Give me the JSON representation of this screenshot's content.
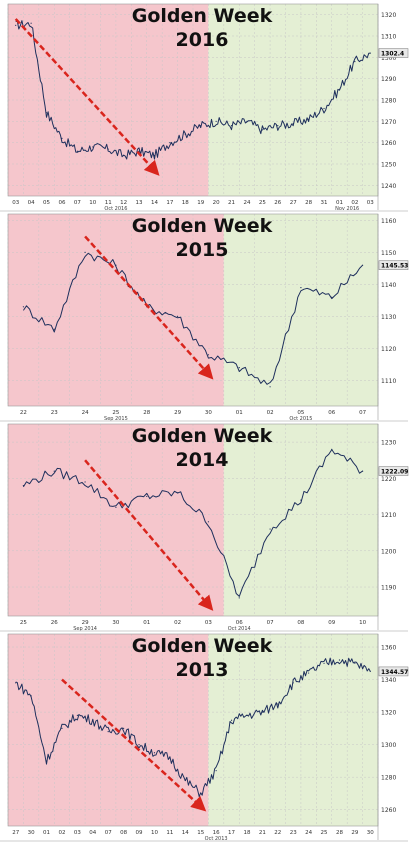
{
  "colors": {
    "pre_holiday_bg": "#f5c6cc",
    "post_holiday_bg": "#e4efd4",
    "price_line": "#1e2f5c",
    "trend_arrow": "#d9251d",
    "grid": "#c7c7c7",
    "last_price_label_bg": "#e8e8e8"
  },
  "chart_data": [
    {
      "type": "line",
      "title_line1": "Golden Week",
      "title_line2": "2016",
      "last_price_label": "1302.4",
      "ylim": [
        1235,
        1325
      ],
      "yticks": [
        1240,
        1250,
        1260,
        1270,
        1280,
        1290,
        1300,
        1310,
        1320
      ],
      "xticks": [
        "03",
        "04",
        "05",
        "06",
        "07",
        "10",
        "11",
        "12",
        "13",
        "14",
        "17",
        "18",
        "19",
        "20",
        "21",
        "24",
        "25",
        "26",
        "27",
        "28",
        "31",
        "01",
        "02",
        "03"
      ],
      "xlabel_groups": [
        {
          "label": "Oct 2016",
          "at": "10-13"
        },
        {
          "label": "Nov 2016",
          "at": "01-02"
        }
      ],
      "holiday_split_after": "19",
      "trend_arrow": {
        "from": [
          "03",
          1318
        ],
        "to": [
          "14",
          1247
        ]
      },
      "x": [
        "03",
        "04",
        "05",
        "06",
        "07",
        "10",
        "11",
        "12",
        "13",
        "14",
        "17",
        "18",
        "19",
        "20",
        "21",
        "24",
        "25",
        "26",
        "27",
        "28",
        "31",
        "01",
        "02",
        "03"
      ],
      "values": [
        1315,
        1316,
        1274,
        1262,
        1256,
        1258,
        1257,
        1254,
        1256,
        1254,
        1260,
        1264,
        1268,
        1270,
        1268,
        1270,
        1266,
        1268,
        1269,
        1271,
        1276,
        1285,
        1298,
        1302
      ]
    },
    {
      "type": "line",
      "title_line1": "Golden Week",
      "title_line2": "2015",
      "last_price_label": "1145.53",
      "ylim": [
        1102,
        1162
      ],
      "yticks": [
        1110,
        1120,
        1130,
        1140,
        1150,
        1160
      ],
      "xticks": [
        "22",
        "23",
        "24",
        "25",
        "28",
        "29",
        "30",
        "01",
        "02",
        "05",
        "06",
        "07"
      ],
      "xlabel_groups": [
        {
          "label": "Sep 2015",
          "at": "25"
        },
        {
          "label": "Oct 2015",
          "at": "05"
        }
      ],
      "holiday_split_after": "30",
      "trend_arrow": {
        "from": [
          "24",
          1155
        ],
        "to": [
          "30",
          1112
        ]
      },
      "x": [
        "22",
        "23",
        "24",
        "25",
        "28",
        "29",
        "30",
        "01",
        "02",
        "05",
        "06",
        "07"
      ],
      "values": [
        1133,
        1126,
        1150,
        1146,
        1133,
        1130,
        1118,
        1114,
        1108,
        1139,
        1136,
        1146
      ]
    },
    {
      "type": "line",
      "title_line1": "Golden Week",
      "title_line2": "2014",
      "last_price_label": "1222.09",
      "ylim": [
        1182,
        1235
      ],
      "yticks": [
        1190,
        1200,
        1210,
        1220,
        1230
      ],
      "xticks": [
        "25",
        "26",
        "29",
        "30",
        "01",
        "02",
        "03",
        "06",
        "07",
        "08",
        "09",
        "10"
      ],
      "xlabel_groups": [
        {
          "label": "Sep 2014",
          "at": "29"
        },
        {
          "label": "Oct 2014",
          "at": "06"
        }
      ],
      "holiday_split_after": "03",
      "trend_arrow": {
        "from": [
          "29",
          1225
        ],
        "to": [
          "03",
          1185
        ]
      },
      "x": [
        "25",
        "26",
        "29",
        "30",
        "01",
        "02",
        "03",
        "06",
        "07",
        "08",
        "09",
        "10"
      ],
      "values": [
        1218,
        1222,
        1219,
        1212,
        1215,
        1216,
        1208,
        1187,
        1206,
        1214,
        1228,
        1222
      ]
    },
    {
      "type": "line",
      "title_line1": "Golden Week",
      "title_line2": "2013",
      "last_price_label": "1344.57",
      "ylim": [
        1250,
        1368
      ],
      "yticks": [
        1260,
        1280,
        1300,
        1320,
        1340,
        1360
      ],
      "xticks": [
        "27",
        "30",
        "01",
        "02",
        "03",
        "04",
        "07",
        "08",
        "09",
        "10",
        "11",
        "14",
        "15",
        "16",
        "17",
        "18",
        "21",
        "22",
        "23",
        "24",
        "25",
        "28",
        "29",
        "30"
      ],
      "xlabel_groups": [
        {
          "label": "Oct 2013",
          "at": "16"
        }
      ],
      "holiday_split_after": "15",
      "trend_arrow": {
        "from": [
          "02",
          1340
        ],
        "to": [
          "15",
          1262
        ]
      },
      "x": [
        "27",
        "30",
        "01",
        "02",
        "03",
        "04",
        "07",
        "08",
        "09",
        "10",
        "11",
        "14",
        "15",
        "16",
        "17",
        "18",
        "21",
        "22",
        "23",
        "24",
        "25",
        "28",
        "29",
        "30"
      ],
      "values": [
        1338,
        1330,
        1290,
        1310,
        1318,
        1315,
        1308,
        1310,
        1300,
        1295,
        1292,
        1278,
        1270,
        1284,
        1315,
        1318,
        1320,
        1325,
        1338,
        1344,
        1350,
        1352,
        1350,
        1345
      ]
    }
  ]
}
